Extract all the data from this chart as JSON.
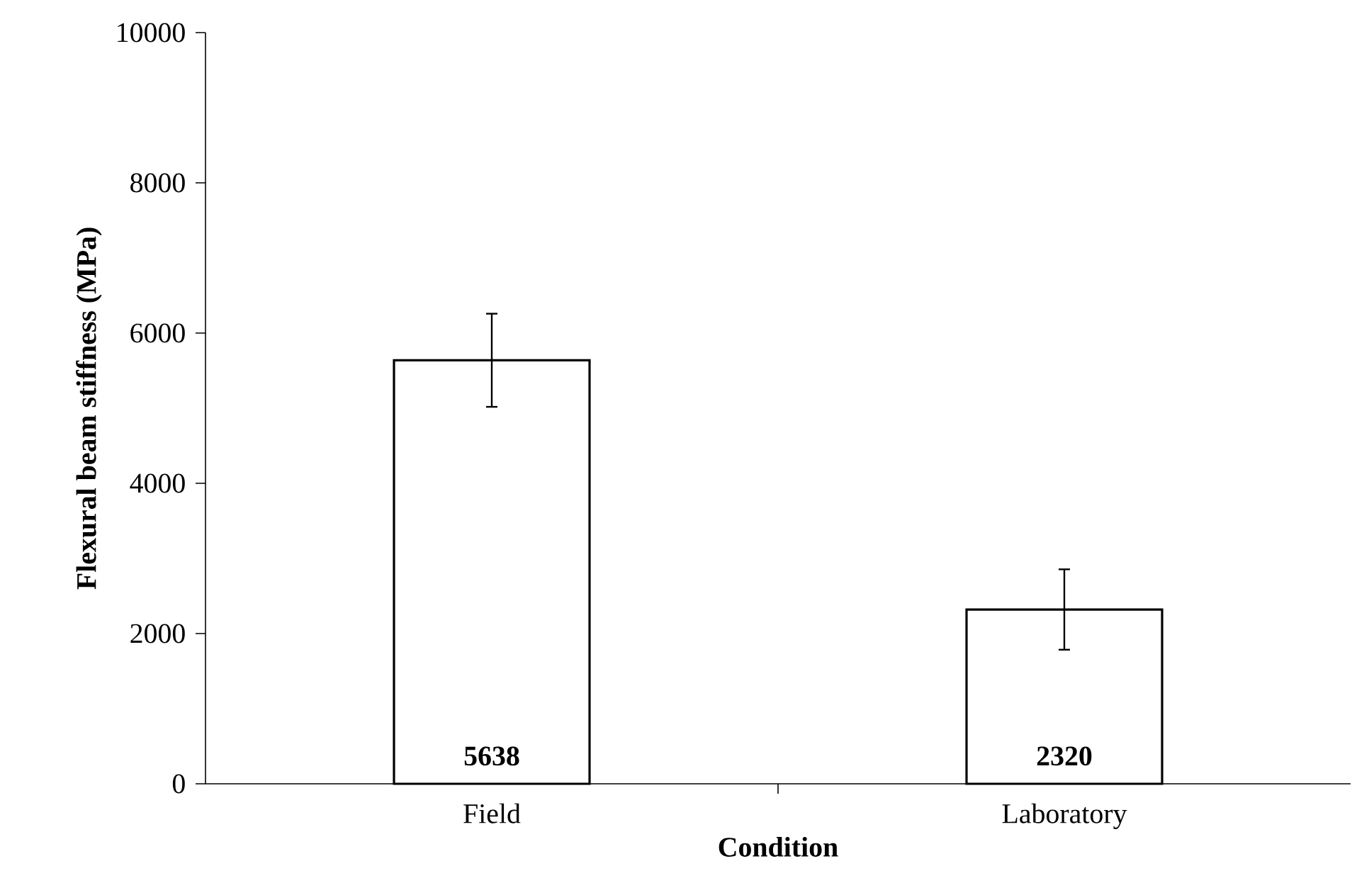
{
  "chart_data": {
    "type": "bar",
    "xlabel": "Condition",
    "ylabel": "Flexural beam stiffness (MPa)",
    "categories": [
      "Field",
      "Laboratory"
    ],
    "values": [
      5638,
      2320
    ],
    "errors": [
      620,
      535
    ],
    "color": "#ffffff",
    "ylim": [
      0,
      10000
    ],
    "yticks": [
      0,
      2000,
      4000,
      6000,
      8000,
      10000
    ],
    "data_labels": true
  }
}
